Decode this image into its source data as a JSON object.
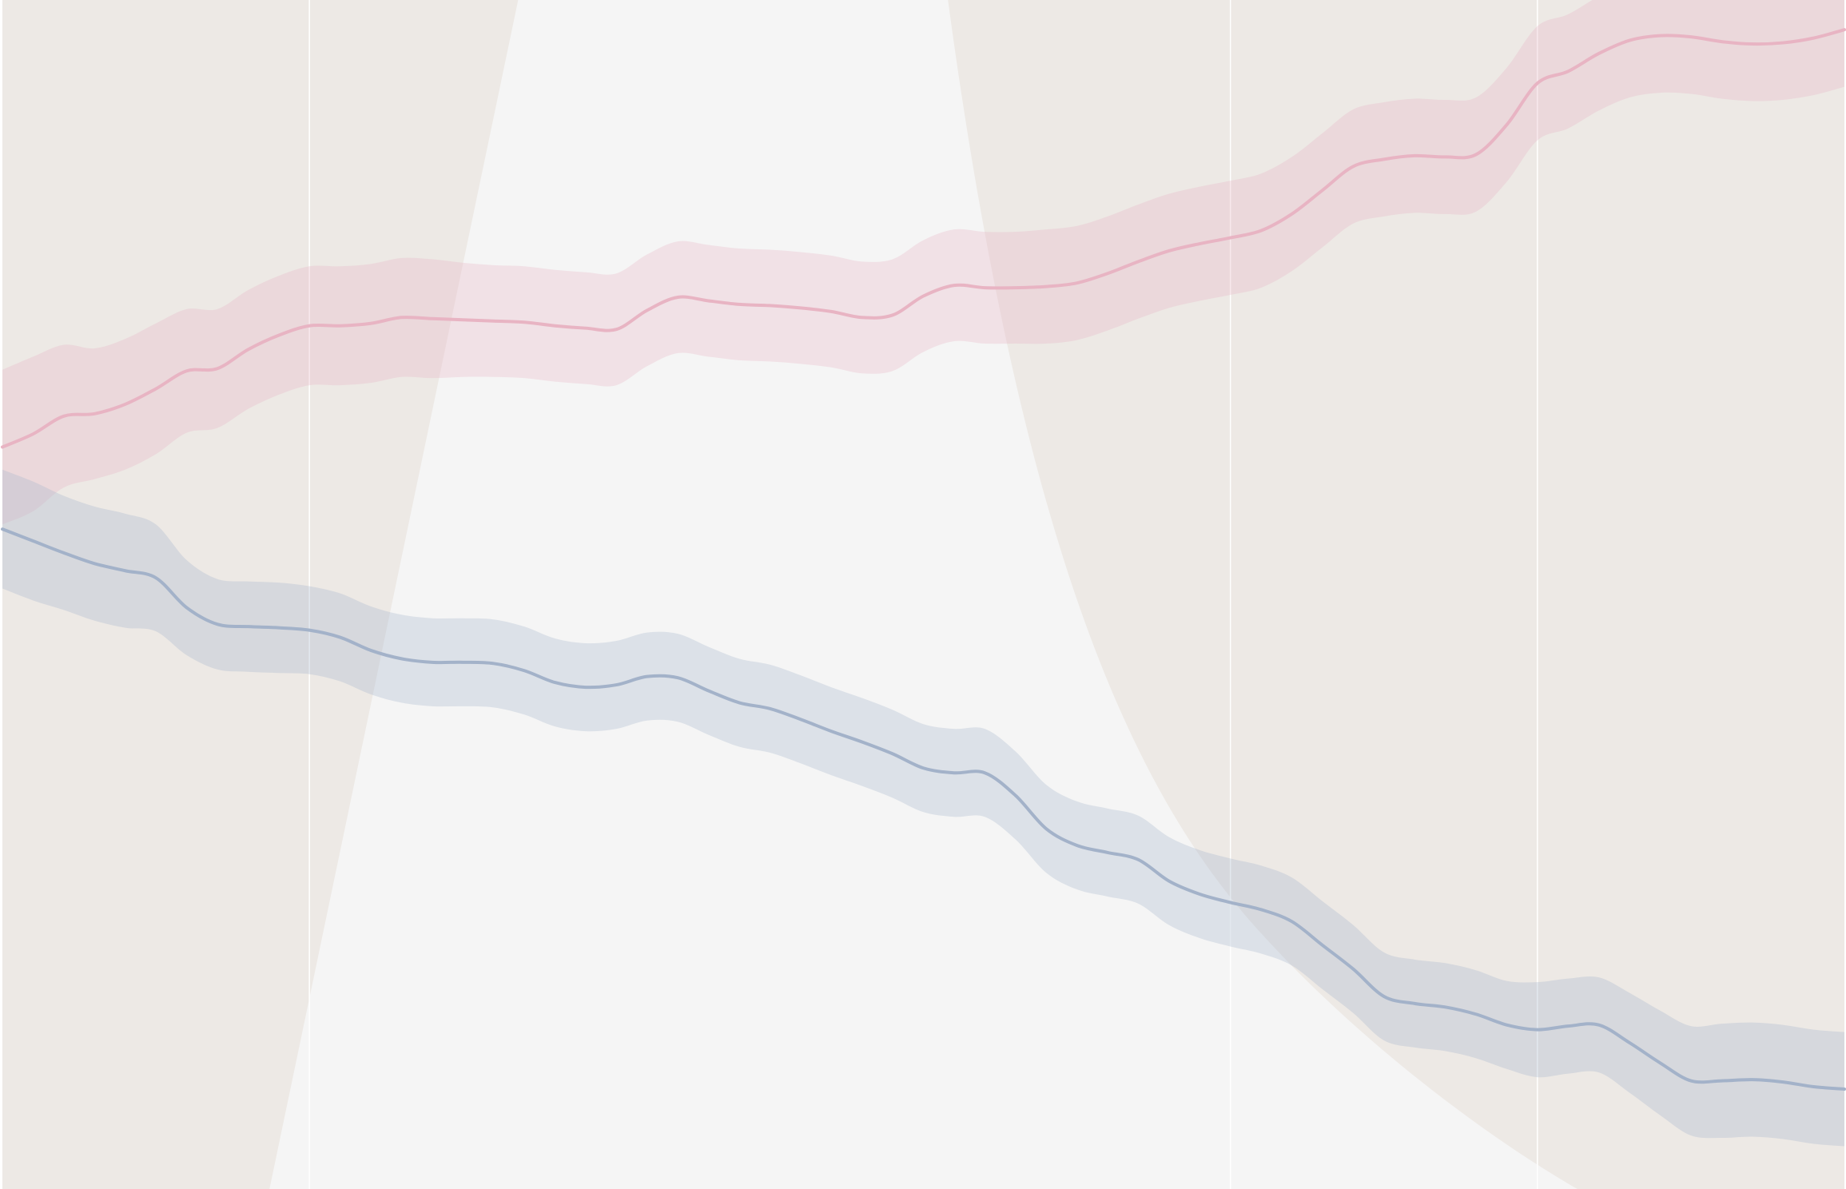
{
  "colors": {
    "background": "#ffffff",
    "plot_background": "#f5f5f5",
    "shaded_region": "#ede9e5",
    "grid": "#ffffff",
    "pink": "#e8b4c3",
    "blue": "#a3b2c9"
  },
  "chart_data": {
    "type": "line",
    "title": "",
    "xlabel": "",
    "ylabel": "",
    "legend": "none",
    "grid": true,
    "xlim": [
      0,
      60
    ],
    "ylim": [
      0,
      100
    ],
    "x_gridlines": [
      10,
      40,
      50
    ],
    "x": [
      0,
      1,
      2,
      3,
      4,
      5,
      6,
      7,
      8,
      9,
      10,
      11,
      12,
      13,
      14,
      15,
      16,
      17,
      18,
      19,
      20,
      21,
      22,
      23,
      24,
      25,
      26,
      27,
      28,
      29,
      30,
      31,
      32,
      33,
      34,
      35,
      36,
      37,
      38,
      39,
      40,
      41,
      42,
      43,
      44,
      45,
      46,
      47,
      48,
      49,
      50,
      51,
      52,
      53,
      54,
      55,
      56,
      57,
      58,
      59,
      60
    ],
    "series": [
      {
        "color_key": "pink",
        "values": [
          62.4,
          63.5,
          65.0,
          65.2,
          66.0,
          67.3,
          68.8,
          69.0,
          70.6,
          71.8,
          72.6,
          72.6,
          72.8,
          73.3,
          73.2,
          73.1,
          73.0,
          72.9,
          72.6,
          72.4,
          72.3,
          73.9,
          75.0,
          74.7,
          74.4,
          74.3,
          74.1,
          73.8,
          73.3,
          73.5,
          75.1,
          76.0,
          75.8,
          75.8,
          75.9,
          76.2,
          77.0,
          78.0,
          78.9,
          79.5,
          80.0,
          80.6,
          82.0,
          84.0,
          86.0,
          86.6,
          86.9,
          86.8,
          87.0,
          89.5,
          93.0,
          94.0,
          95.5,
          96.6,
          97.0,
          96.9,
          96.5,
          96.3,
          96.4,
          96.8,
          97.5
        ],
        "band": [
          6.5,
          6.5,
          6.0,
          5.5,
          5.5,
          5.5,
          5.2,
          5.0,
          5.0,
          5.0,
          5.0,
          5.0,
          5.0,
          5.0,
          5.0,
          4.8,
          4.7,
          4.7,
          4.7,
          4.7,
          4.7,
          4.7,
          4.7,
          4.7,
          4.7,
          4.7,
          4.7,
          4.7,
          4.7,
          4.7,
          4.7,
          4.7,
          4.7,
          4.7,
          4.8,
          4.8,
          4.8,
          4.8,
          4.8,
          4.8,
          4.8,
          4.8,
          4.8,
          4.8,
          4.8,
          4.8,
          4.8,
          4.8,
          4.8,
          4.8,
          4.8,
          4.8,
          4.8,
          4.8,
          4.8,
          4.8,
          4.8,
          4.8,
          4.8,
          4.8,
          4.8
        ]
      },
      {
        "color_key": "blue",
        "values": [
          55.5,
          54.5,
          53.5,
          52.6,
          52.0,
          51.4,
          48.9,
          47.5,
          47.3,
          47.2,
          47.0,
          46.4,
          45.3,
          44.6,
          44.3,
          44.3,
          44.2,
          43.6,
          42.6,
          42.2,
          42.4,
          43.1,
          43.0,
          41.9,
          40.9,
          40.4,
          39.5,
          38.5,
          37.6,
          36.6,
          35.4,
          35.0,
          35.0,
          33.1,
          30.3,
          28.9,
          28.3,
          27.7,
          25.9,
          24.8,
          24.1,
          23.5,
          22.5,
          20.5,
          18.5,
          16.2,
          15.6,
          15.3,
          14.7,
          13.8,
          13.4,
          13.7,
          13.8,
          12.3,
          10.6,
          9.1,
          9.1,
          9.2,
          9.0,
          8.6,
          8.4
        ],
        "band": [
          5.0,
          5.0,
          4.8,
          4.8,
          4.8,
          4.5,
          4.0,
          3.8,
          3.8,
          3.8,
          3.7,
          3.7,
          3.7,
          3.7,
          3.7,
          3.7,
          3.7,
          3.7,
          3.7,
          3.7,
          3.7,
          3.7,
          3.7,
          3.7,
          3.7,
          3.7,
          3.7,
          3.7,
          3.7,
          3.7,
          3.7,
          3.7,
          3.7,
          3.7,
          3.7,
          3.7,
          3.7,
          3.7,
          3.7,
          3.7,
          3.7,
          3.7,
          3.7,
          3.7,
          3.7,
          3.7,
          3.7,
          3.7,
          3.7,
          3.7,
          4.0,
          4.0,
          4.0,
          4.2,
          4.4,
          4.6,
          4.8,
          4.8,
          4.8,
          4.8,
          4.8
        ]
      }
    ],
    "shaded_regions": [
      {
        "x_top": 16.8,
        "x_bottom": 8.7,
        "shape": "line"
      },
      {
        "x_top": 30.8,
        "x_bottom": 51.3,
        "shape": "curve"
      }
    ]
  }
}
